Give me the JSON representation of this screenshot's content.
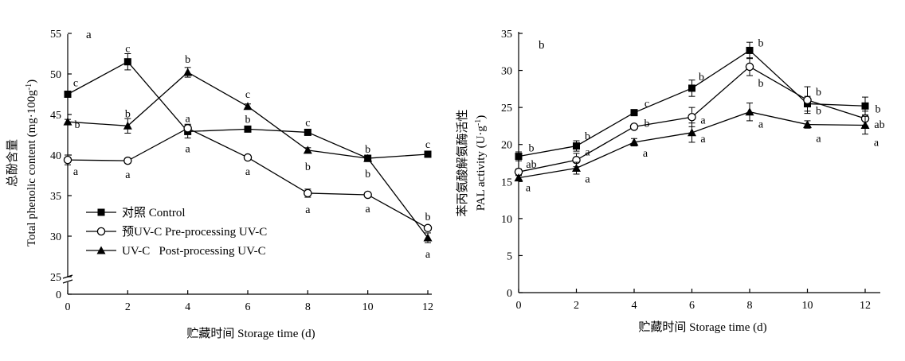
{
  "chart_data": [
    {
      "type": "line",
      "ylabel": "总酚含量",
      "ylabel_en": "Total phenolic content (mg·100g",
      "ylabel_en_sup": "-1",
      "ylabel_en_close": ")",
      "xlabel": "贮藏时间 Storage time (d)",
      "panel_letter": "a",
      "x": [
        0,
        2,
        4,
        6,
        8,
        10,
        12
      ],
      "xlim": [
        0,
        12
      ],
      "xticks": [
        "0",
        "2",
        "4",
        "6",
        "8",
        "10",
        "12"
      ],
      "ylim": [
        25,
        55
      ],
      "yticks": [
        "0",
        "25",
        "30",
        "35",
        "40",
        "45",
        "50",
        "55"
      ],
      "axis_break": true,
      "legend_position": "lower-left",
      "series": [
        {
          "name": "对照 Control",
          "marker": "filled-square",
          "values": [
            47.5,
            51.5,
            42.9,
            43.2,
            42.8,
            39.6,
            40.1
          ],
          "errors": [
            0.3,
            1.0,
            0.8,
            0.3,
            0.3,
            0.4,
            0.3
          ],
          "labels": [
            "c",
            "c",
            "a",
            "b",
            "c",
            "b",
            "c"
          ]
        },
        {
          "name": "预UV-C Pre-processing UV-C",
          "marker": "open-circle",
          "values": [
            39.4,
            39.3,
            43.3,
            39.7,
            35.3,
            35.1,
            31.0
          ],
          "errors": [
            0.6,
            0.3,
            0.5,
            0.3,
            0.5,
            0.3,
            0.3
          ],
          "labels": [
            "a",
            "a",
            "a",
            "a",
            "a",
            "a",
            "b"
          ]
        },
        {
          "name": "UV-C   Post-processing UV-C",
          "marker": "filled-triangle",
          "values": [
            44.1,
            43.6,
            50.2,
            46.0,
            40.6,
            39.6,
            29.8
          ],
          "errors": [
            0.3,
            0.9,
            0.6,
            0.3,
            0.3,
            0.3,
            0.6
          ],
          "labels": [
            "b",
            "b",
            "b",
            "c",
            "b",
            "b",
            "a"
          ]
        }
      ]
    },
    {
      "type": "line",
      "ylabel": "苯丙氨酸解氨酶活性",
      "ylabel_en": "PAL activity (U·g",
      "ylabel_en_sup": "-1",
      "ylabel_en_close": ")",
      "xlabel": "贮藏时间 Storage time (d)",
      "panel_letter": "b",
      "x": [
        0,
        2,
        4,
        6,
        8,
        10,
        12
      ],
      "xlim": [
        0,
        12
      ],
      "xticks": [
        "0",
        "2",
        "4",
        "6",
        "8",
        "10",
        "12"
      ],
      "ylim": [
        0,
        35
      ],
      "yticks": [
        "0",
        "5",
        "10",
        "15",
        "20",
        "25",
        "30",
        "35"
      ],
      "series": [
        {
          "name": "对照 Control",
          "marker": "filled-square",
          "values": [
            18.4,
            19.8,
            24.3,
            27.6,
            32.7,
            25.5,
            25.2
          ],
          "errors": [
            0.6,
            0.7,
            0.3,
            1.1,
            1.1,
            1.0,
            1.2
          ],
          "labels": [
            "b",
            "b",
            "c",
            "b",
            "b",
            "b",
            "b"
          ]
        },
        {
          "name": "预UV-C Pre-processing UV-C",
          "marker": "open-circle",
          "values": [
            16.3,
            17.9,
            22.4,
            23.7,
            30.5,
            26.0,
            23.5
          ],
          "errors": [
            0.4,
            0.9,
            0.3,
            1.3,
            1.2,
            1.8,
            1.0
          ],
          "labels": [
            "ab",
            "a",
            "b",
            "a",
            "b",
            "b",
            "ab"
          ]
        },
        {
          "name": "UV-C   Post-processing UV-C",
          "marker": "filled-triangle",
          "values": [
            15.5,
            16.8,
            20.3,
            21.6,
            24.4,
            22.7,
            22.6
          ],
          "errors": [
            0.3,
            0.8,
            0.5,
            1.3,
            1.2,
            0.5,
            1.2
          ],
          "labels": [
            "a",
            "a",
            "a",
            "a",
            "a",
            "a",
            "a"
          ]
        }
      ]
    }
  ]
}
